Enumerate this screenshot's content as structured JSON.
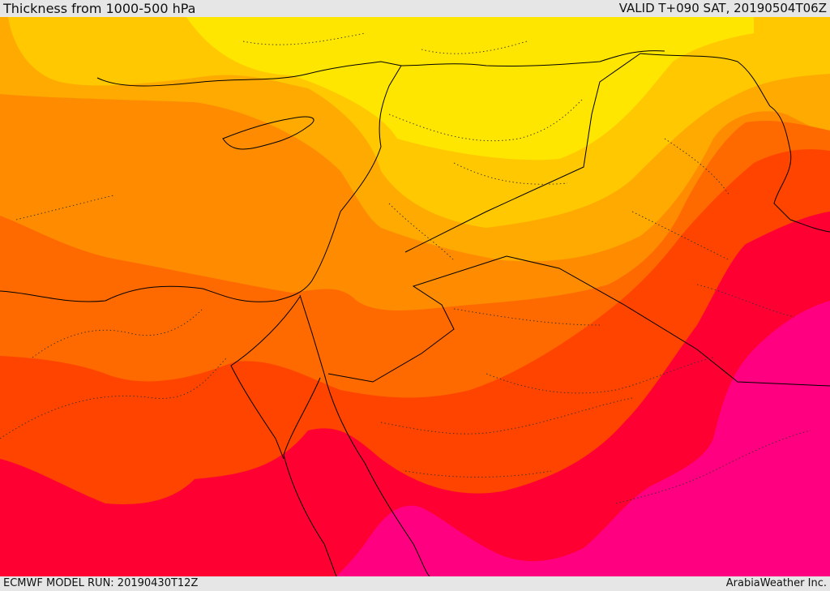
{
  "header": {
    "title": "Thickness from 1000-500 hPa",
    "valid": "VALID T+090 SAT, 20190504T06Z"
  },
  "footer": {
    "model_run": "ECMWF MODEL RUN: 20190430T12Z",
    "credit": "ArabiaWeather Inc."
  },
  "map": {
    "field": "1000-500 hPa thickness",
    "color_bands": [
      "#ffe600",
      "#ffc800",
      "#ffaa00",
      "#ff8c00",
      "#ff6a00",
      "#ff4400",
      "#ff0033",
      "#ff0080"
    ],
    "country_border_color": "#000000",
    "province_border_style": "dotted"
  }
}
